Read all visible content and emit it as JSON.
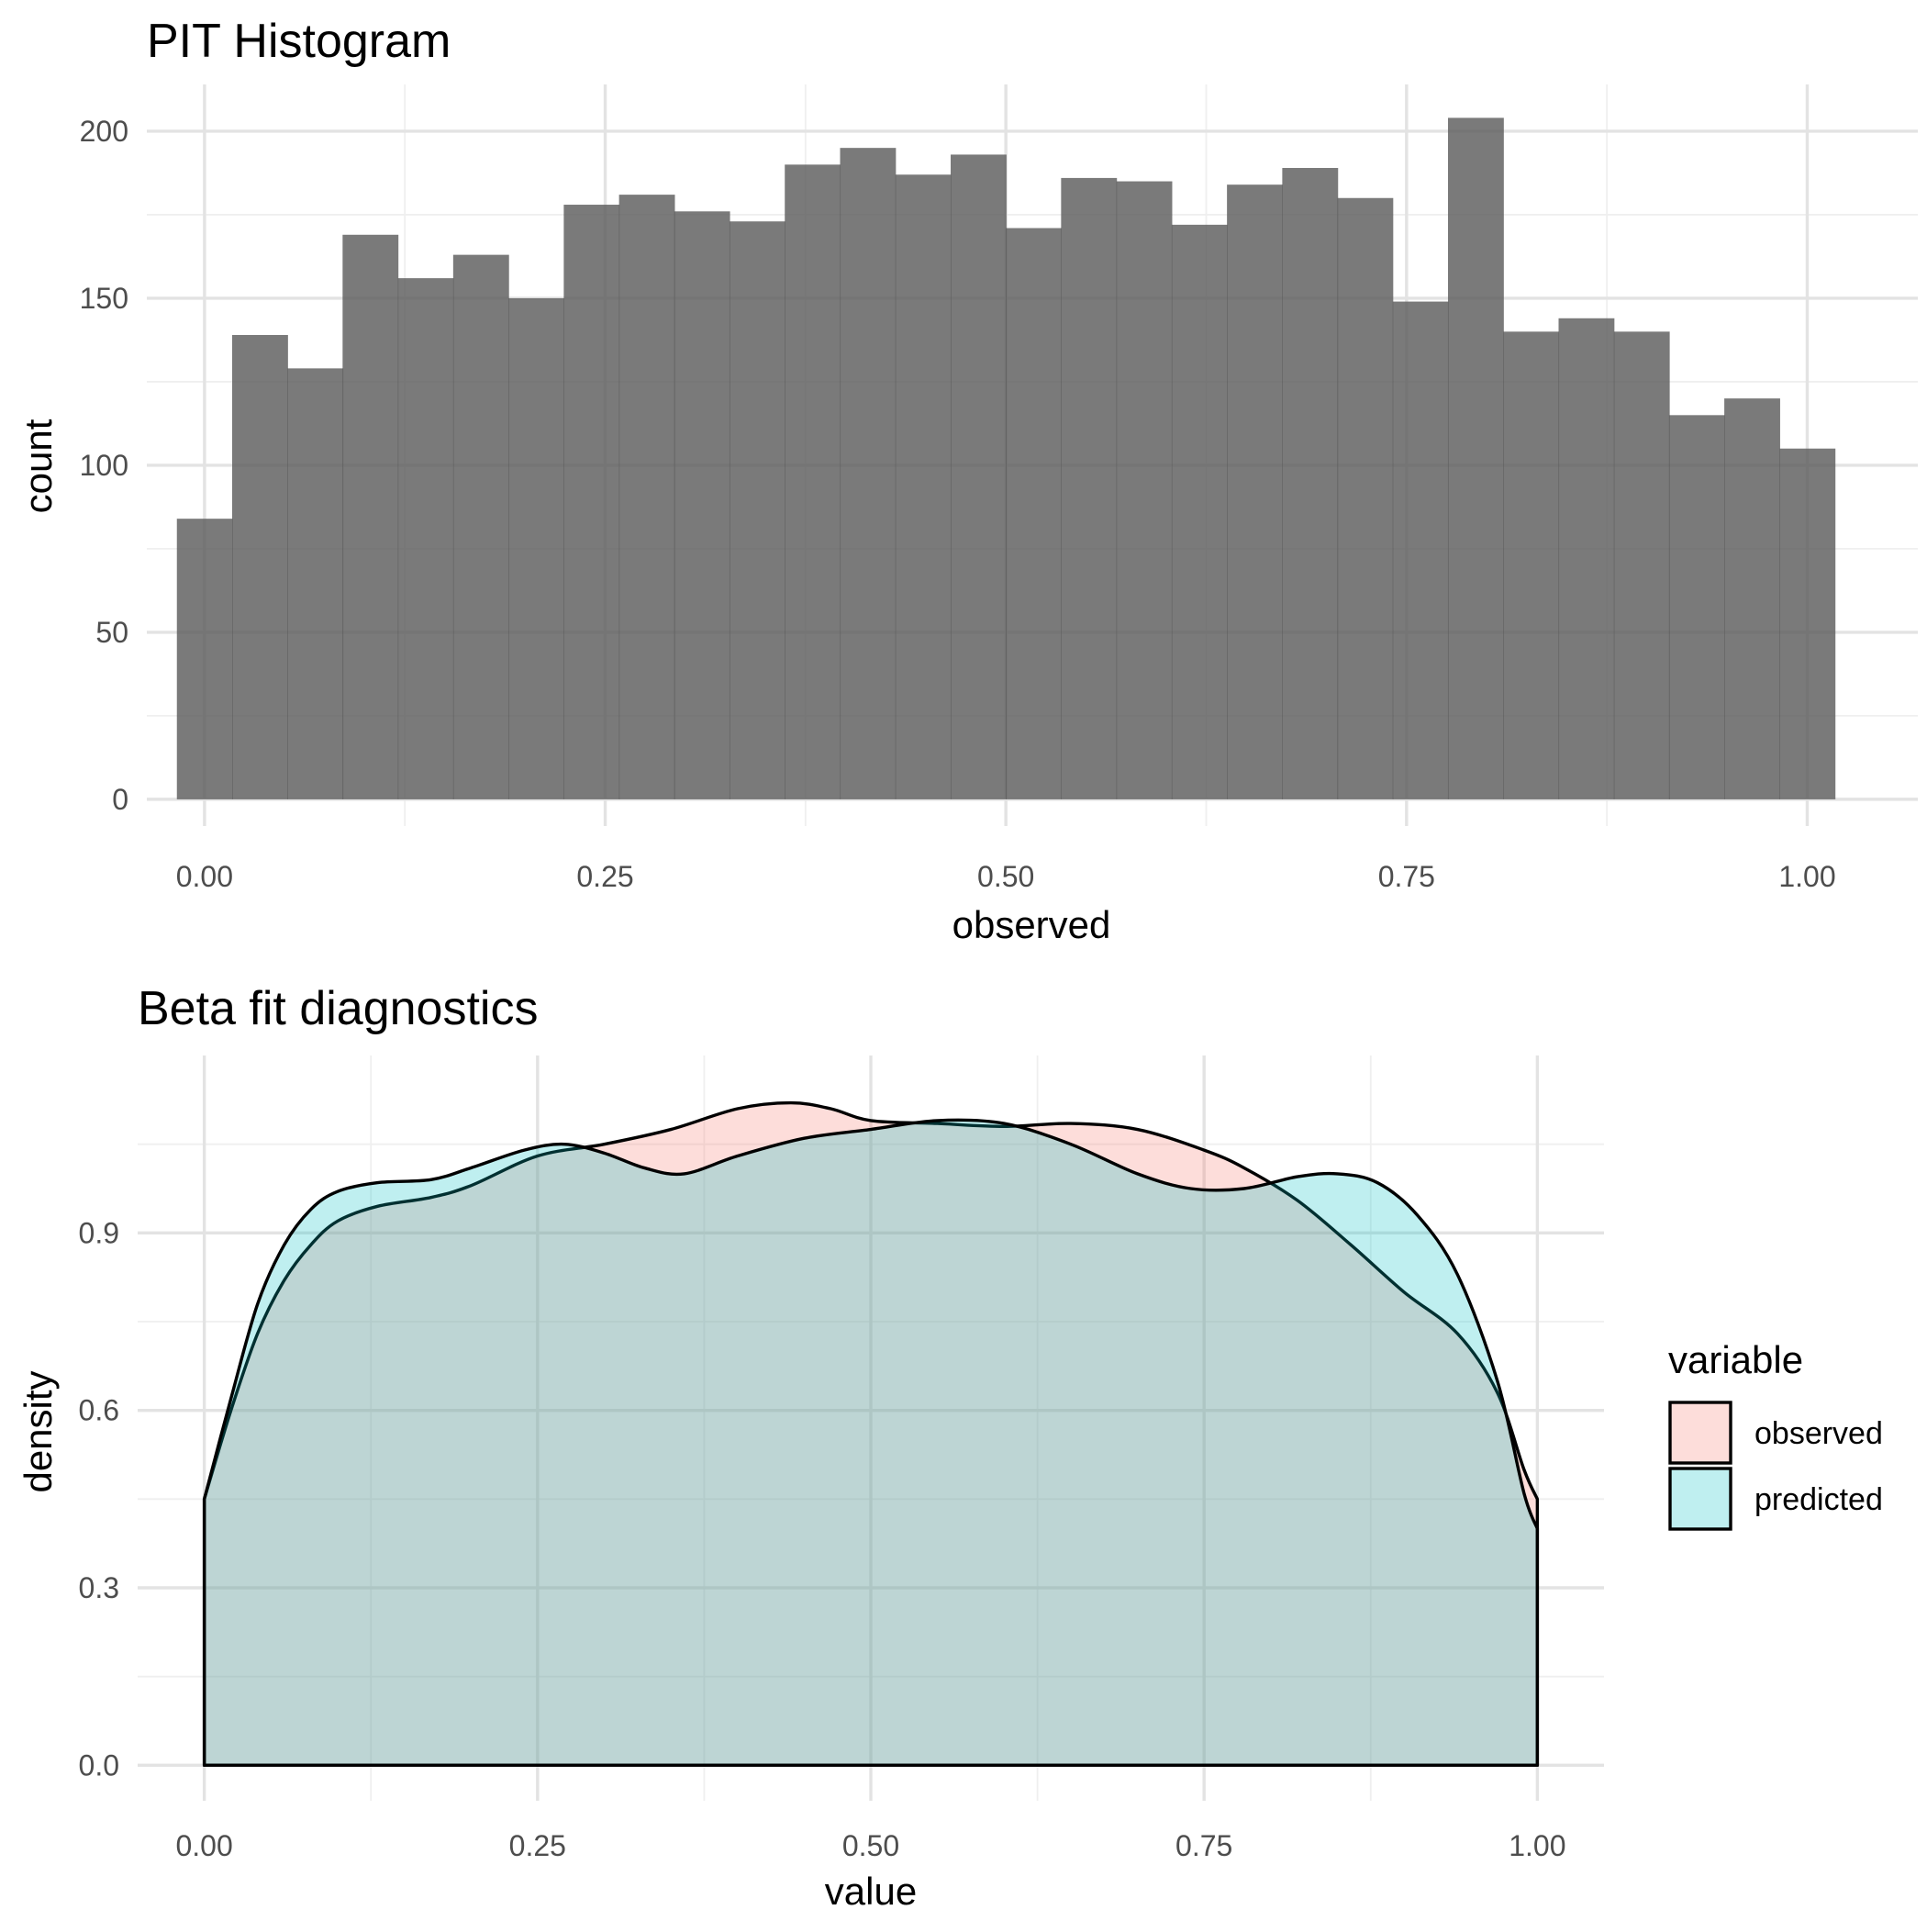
{
  "chart_data": [
    {
      "type": "bar",
      "title": "PIT Histogram",
      "xlabel": "observed",
      "ylabel": "count",
      "xlim": [
        -0.036,
        1.069
      ],
      "ylim": [
        -8,
        214
      ],
      "x_ticks": [
        "0.00",
        "0.25",
        "0.50",
        "0.75",
        "1.00"
      ],
      "x_tick_values": [
        0,
        0.25,
        0.5,
        0.75,
        1.0
      ],
      "y_ticks": [
        "0",
        "50",
        "100",
        "150",
        "200"
      ],
      "y_tick_values": [
        0,
        50,
        100,
        150,
        200
      ],
      "grid": true,
      "bar_color": "#595959",
      "bin_width": 0.0345,
      "bin_centers": [
        0.0,
        0.0345,
        0.069,
        0.1034,
        0.1379,
        0.1724,
        0.2069,
        0.2414,
        0.2759,
        0.3103,
        0.3448,
        0.3793,
        0.4138,
        0.4483,
        0.4828,
        0.5172,
        0.5517,
        0.5862,
        0.6207,
        0.6552,
        0.6897,
        0.7241,
        0.7586,
        0.7931,
        0.8276,
        0.8621,
        0.8966,
        0.931,
        0.9655,
        1.0
      ],
      "values": [
        84,
        139,
        129,
        169,
        156,
        163,
        150,
        178,
        181,
        176,
        173,
        190,
        195,
        187,
        193,
        171,
        186,
        185,
        172,
        184,
        189,
        180,
        149,
        204,
        140,
        144,
        140,
        115,
        120,
        105
      ]
    },
    {
      "type": "area",
      "title": "Beta fit diagnostics",
      "xlabel": "value",
      "ylabel": "density",
      "xlim": [
        -0.05,
        1.05
      ],
      "ylim": [
        -0.06,
        1.2
      ],
      "x_ticks": [
        "0.00",
        "0.25",
        "0.50",
        "0.75",
        "1.00"
      ],
      "x_tick_values": [
        0,
        0.25,
        0.5,
        0.75,
        1.0
      ],
      "y_ticks": [
        "0.0",
        "0.3",
        "0.6",
        "0.9"
      ],
      "y_tick_values": [
        0,
        0.3,
        0.6,
        0.9
      ],
      "grid": true,
      "legend": {
        "title": "variable",
        "position": "right"
      },
      "series": [
        {
          "name": "observed",
          "fill": "#F8766D",
          "points": [
            [
              0.0,
              0.45
            ],
            [
              0.02,
              0.6
            ],
            [
              0.04,
              0.73
            ],
            [
              0.06,
              0.82
            ],
            [
              0.08,
              0.88
            ],
            [
              0.1,
              0.92
            ],
            [
              0.13,
              0.945
            ],
            [
              0.17,
              0.96
            ],
            [
              0.2,
              0.98
            ],
            [
              0.25,
              1.03
            ],
            [
              0.3,
              1.05
            ],
            [
              0.35,
              1.075
            ],
            [
              0.4,
              1.11
            ],
            [
              0.44,
              1.12
            ],
            [
              0.47,
              1.11
            ],
            [
              0.5,
              1.09
            ],
            [
              0.55,
              1.085
            ],
            [
              0.6,
              1.08
            ],
            [
              0.65,
              1.085
            ],
            [
              0.7,
              1.075
            ],
            [
              0.75,
              1.04
            ],
            [
              0.78,
              1.01
            ],
            [
              0.82,
              0.955
            ],
            [
              0.86,
              0.88
            ],
            [
              0.9,
              0.8
            ],
            [
              0.94,
              0.73
            ],
            [
              0.97,
              0.63
            ],
            [
              0.99,
              0.5
            ],
            [
              1.0,
              0.45
            ]
          ]
        },
        {
          "name": "predicted",
          "fill": "#00BFC4",
          "points": [
            [
              0.0,
              0.45
            ],
            [
              0.02,
              0.62
            ],
            [
              0.04,
              0.78
            ],
            [
              0.06,
              0.88
            ],
            [
              0.08,
              0.94
            ],
            [
              0.1,
              0.97
            ],
            [
              0.13,
              0.985
            ],
            [
              0.17,
              0.99
            ],
            [
              0.2,
              1.01
            ],
            [
              0.24,
              1.04
            ],
            [
              0.27,
              1.05
            ],
            [
              0.3,
              1.035
            ],
            [
              0.33,
              1.01
            ],
            [
              0.36,
              1.0
            ],
            [
              0.4,
              1.03
            ],
            [
              0.45,
              1.06
            ],
            [
              0.5,
              1.075
            ],
            [
              0.55,
              1.09
            ],
            [
              0.6,
              1.085
            ],
            [
              0.65,
              1.05
            ],
            [
              0.7,
              1.0
            ],
            [
              0.74,
              0.975
            ],
            [
              0.78,
              0.975
            ],
            [
              0.82,
              0.995
            ],
            [
              0.85,
              1.0
            ],
            [
              0.88,
              0.985
            ],
            [
              0.91,
              0.93
            ],
            [
              0.94,
              0.83
            ],
            [
              0.97,
              0.65
            ],
            [
              0.99,
              0.46
            ],
            [
              1.0,
              0.4
            ]
          ]
        }
      ]
    }
  ]
}
